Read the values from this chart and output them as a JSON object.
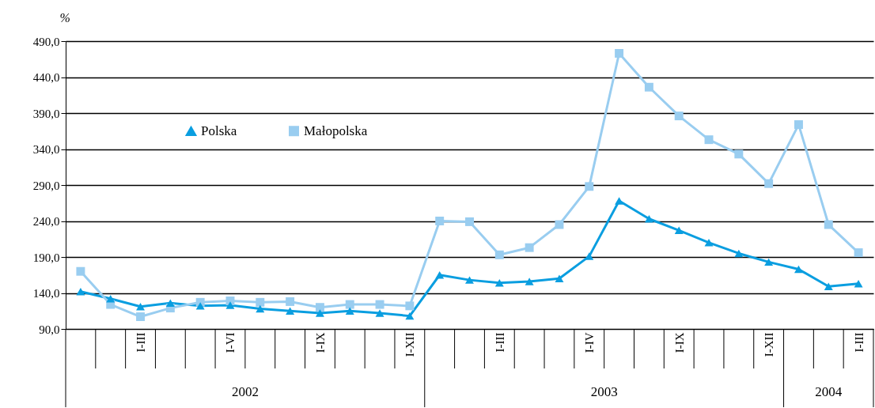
{
  "chart_data": {
    "type": "line",
    "ylabel": "%",
    "categories": [
      null,
      null,
      "I-III",
      null,
      null,
      "I-VI",
      null,
      null,
      "I-IX",
      null,
      null,
      "I-XII",
      null,
      null,
      "I-III",
      null,
      null,
      "I-IV",
      null,
      null,
      "I-IX",
      null,
      null,
      "I-XII",
      null,
      null,
      "I-III"
    ],
    "series": [
      {
        "name": "Polska",
        "color": "#0a9ee0",
        "marker": "triangle",
        "values": [
          142,
          132,
          121,
          126,
          122,
          123,
          118,
          115,
          112,
          115,
          112,
          108,
          165,
          158,
          154,
          156,
          160,
          191,
          268,
          243,
          227,
          210,
          195,
          183,
          173,
          149,
          153
        ]
      },
      {
        "name": "Małopolska",
        "color": "#99cdf0",
        "marker": "square",
        "values": [
          170,
          124,
          107,
          119,
          127,
          129,
          127,
          128,
          120,
          124,
          124,
          122,
          240,
          239,
          193,
          203,
          235,
          288,
          473,
          426,
          386,
          353,
          333,
          292,
          374,
          235,
          196
        ]
      }
    ],
    "ylim": [
      90,
      490
    ],
    "yticks": [
      {
        "value": 90,
        "label": "90,0"
      },
      {
        "value": 140,
        "label": "140,0"
      },
      {
        "value": 190,
        "label": "190,0"
      },
      {
        "value": 240,
        "label": "240,0"
      },
      {
        "value": 290,
        "label": "290,0"
      },
      {
        "value": 340,
        "label": "340,0"
      },
      {
        "value": 390,
        "label": "390,0"
      },
      {
        "value": 440,
        "label": "440,0"
      },
      {
        "value": 490,
        "label": "490,0"
      }
    ],
    "grid": "y",
    "legend": "top left",
    "line_style": "solid",
    "annotations": [
      "2002",
      "2003",
      "2004"
    ]
  }
}
